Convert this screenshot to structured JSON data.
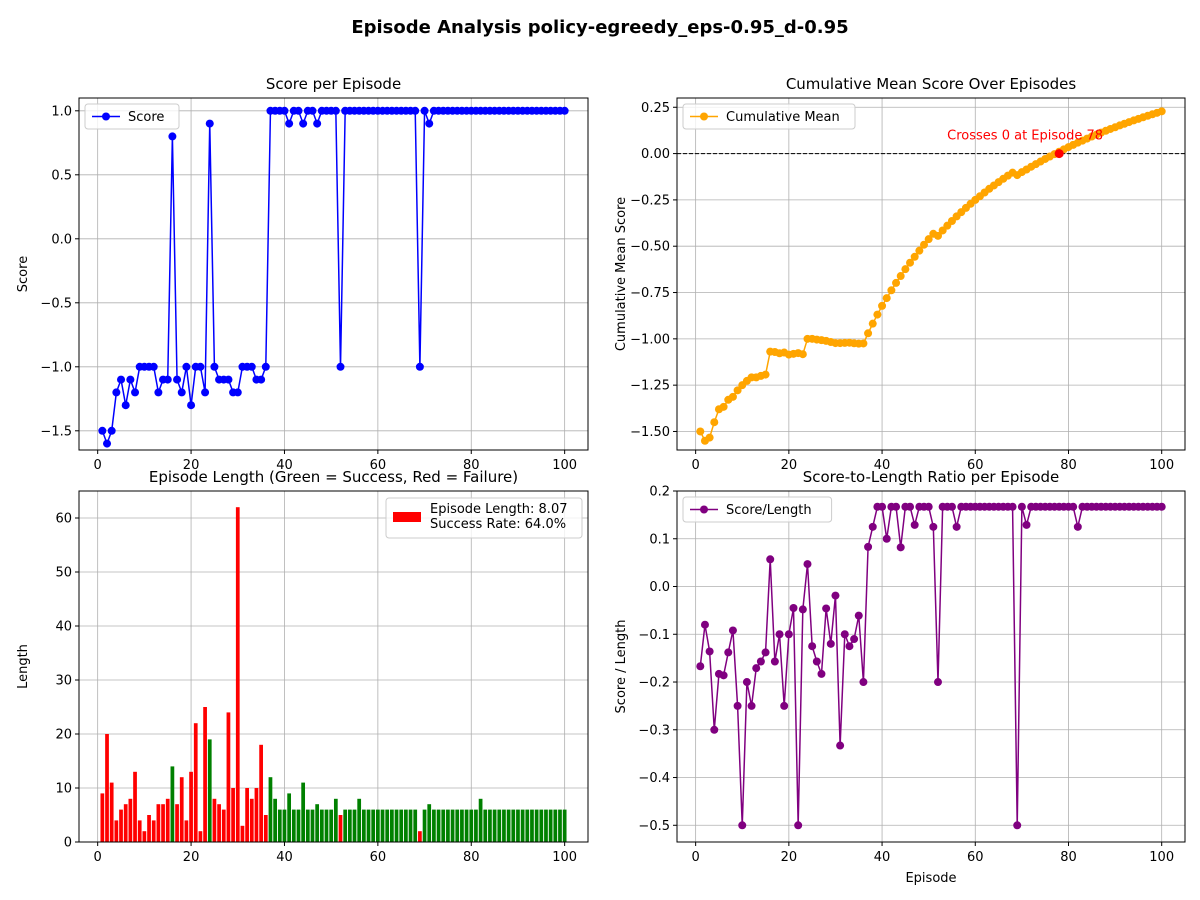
{
  "figure": {
    "title": "Episode Analysis policy-egreedy_eps-0.95_d-0.95"
  },
  "chart_data": [
    {
      "type": "line",
      "title": "Score per Episode",
      "xlabel": "",
      "ylabel": "Score",
      "xlim": [
        -4,
        105
      ],
      "ylim": [
        -1.65,
        1.1
      ],
      "xticks": [
        0,
        20,
        40,
        60,
        80,
        100
      ],
      "yticks": [
        -1.5,
        -1.0,
        -0.5,
        0.0,
        0.5,
        1.0
      ],
      "ytick_labels": [
        "−1.5",
        "−1.0",
        "−0.5",
        "0.0",
        "0.5",
        "1.0"
      ],
      "grid": true,
      "legend": "upper-left",
      "series": [
        {
          "name": "Score",
          "color": "#0000ff",
          "marker": "circle",
          "x": [
            1,
            2,
            3,
            4,
            5,
            6,
            7,
            8,
            9,
            10,
            11,
            12,
            13,
            14,
            15,
            16,
            17,
            18,
            19,
            20,
            21,
            22,
            23,
            24,
            25,
            26,
            27,
            28,
            29,
            30,
            31,
            32,
            33,
            34,
            35,
            36,
            37,
            38,
            39,
            40,
            41,
            42,
            43,
            44,
            45,
            46,
            47,
            48,
            49,
            50,
            51,
            52,
            53,
            54,
            55,
            56,
            57,
            58,
            59,
            60,
            61,
            62,
            63,
            64,
            65,
            66,
            67,
            68,
            69,
            70,
            71,
            72,
            73,
            74,
            75,
            76,
            77,
            78,
            79,
            80,
            81,
            82,
            83,
            84,
            85,
            86,
            87,
            88,
            89,
            90,
            91,
            92,
            93,
            94,
            95,
            96,
            97,
            98,
            99,
            100
          ],
          "values": [
            -1.5,
            -1.6,
            -1.5,
            -1.2,
            -1.1,
            -1.3,
            -1.1,
            -1.2,
            -1.0,
            -1.0,
            -1.0,
            -1.0,
            -1.2,
            -1.1,
            -1.1,
            0.8,
            -1.1,
            -1.2,
            -1.0,
            -1.3,
            -1.0,
            -1.0,
            -1.2,
            0.9,
            -1.0,
            -1.1,
            -1.1,
            -1.1,
            -1.2,
            -1.2,
            -1.0,
            -1.0,
            -1.0,
            -1.1,
            -1.1,
            -1.0,
            1.0,
            1.0,
            1.0,
            1.0,
            0.9,
            1.0,
            1.0,
            0.9,
            1.0,
            1.0,
            0.9,
            1.0,
            1.0,
            1.0,
            1.0,
            -1.0,
            1.0,
            1.0,
            1.0,
            1.0,
            1.0,
            1.0,
            1.0,
            1.0,
            1.0,
            1.0,
            1.0,
            1.0,
            1.0,
            1.0,
            1.0,
            1.0,
            -1.0,
            1.0,
            0.9,
            1.0,
            1.0,
            1.0,
            1.0,
            1.0,
            1.0,
            1.0,
            1.0,
            1.0,
            1.0,
            1.0,
            1.0,
            1.0,
            1.0,
            1.0,
            1.0,
            1.0,
            1.0,
            1.0,
            1.0,
            1.0,
            1.0,
            1.0,
            1.0,
            1.0,
            1.0,
            1.0,
            1.0,
            1.0
          ]
        }
      ]
    },
    {
      "type": "line",
      "title": "Cumulative Mean Score Over Episodes",
      "xlabel": "",
      "ylabel": "Cumulative Mean Score",
      "xlim": [
        -4,
        105
      ],
      "ylim": [
        -1.6,
        0.3
      ],
      "xticks": [
        0,
        20,
        40,
        60,
        80,
        100
      ],
      "yticks": [
        -1.5,
        -1.25,
        -1.0,
        -0.75,
        -0.5,
        -0.25,
        0.0,
        0.25
      ],
      "ytick_labels": [
        "−1.50",
        "−1.25",
        "−1.00",
        "−0.75",
        "−0.50",
        "−0.25",
        "0.00",
        "0.25"
      ],
      "grid": true,
      "legend": "upper-left",
      "reference_line": {
        "y": 0,
        "style": "dashed",
        "color": "#000000"
      },
      "annotation": {
        "text": "Crosses 0 at Episode 78",
        "x": 78,
        "y": 0.0,
        "color": "#ff0000"
      },
      "series": [
        {
          "name": "Cumulative Mean",
          "color": "#ffa500",
          "marker": "circle",
          "x": [
            1,
            2,
            3,
            4,
            5,
            6,
            7,
            8,
            9,
            10,
            11,
            12,
            13,
            14,
            15,
            16,
            17,
            18,
            19,
            20,
            21,
            22,
            23,
            24,
            25,
            26,
            27,
            28,
            29,
            30,
            31,
            32,
            33,
            34,
            35,
            36,
            37,
            38,
            39,
            40,
            41,
            42,
            43,
            44,
            45,
            46,
            47,
            48,
            49,
            50,
            51,
            52,
            53,
            54,
            55,
            56,
            57,
            58,
            59,
            60,
            61,
            62,
            63,
            64,
            65,
            66,
            67,
            68,
            69,
            70,
            71,
            72,
            73,
            74,
            75,
            76,
            77,
            78,
            79,
            80,
            81,
            82,
            83,
            84,
            85,
            86,
            87,
            88,
            89,
            90,
            91,
            92,
            93,
            94,
            95,
            96,
            97,
            98,
            99,
            100
          ],
          "values": [
            -1.5,
            -1.55,
            -1.533,
            -1.45,
            -1.38,
            -1.367,
            -1.329,
            -1.313,
            -1.278,
            -1.25,
            -1.227,
            -1.208,
            -1.208,
            -1.2,
            -1.193,
            -1.069,
            -1.071,
            -1.078,
            -1.074,
            -1.085,
            -1.081,
            -1.077,
            -1.083,
            -1.0,
            -1.0,
            -1.004,
            -1.007,
            -1.011,
            -1.017,
            -1.023,
            -1.023,
            -1.022,
            -1.021,
            -1.024,
            -1.026,
            -1.025,
            -0.97,
            -0.918,
            -0.869,
            -0.822,
            -0.78,
            -0.738,
            -0.698,
            -0.661,
            -0.624,
            -0.589,
            -0.557,
            -0.524,
            -0.492,
            -0.462,
            -0.433,
            -0.444,
            -0.415,
            -0.389,
            -0.364,
            -0.339,
            -0.316,
            -0.293,
            -0.271,
            -0.25,
            -0.23,
            -0.21,
            -0.19,
            -0.172,
            -0.154,
            -0.136,
            -0.119,
            -0.103,
            -0.116,
            -0.1,
            -0.086,
            -0.071,
            -0.057,
            -0.043,
            -0.029,
            -0.016,
            -0.003,
            0.01,
            0.023,
            0.035,
            0.047,
            0.059,
            0.07,
            0.081,
            0.092,
            0.102,
            0.113,
            0.123,
            0.133,
            0.142,
            0.152,
            0.161,
            0.17,
            0.179,
            0.187,
            0.196,
            0.204,
            0.212,
            0.22,
            0.228
          ]
        }
      ],
      "crossing_point": {
        "x": 78,
        "y": 0.0,
        "color": "#ff0000"
      }
    },
    {
      "type": "bar",
      "title": "Episode Length (Green = Success, Red = Failure)",
      "xlabel": "",
      "ylabel": "Length",
      "xlim": [
        -4,
        105
      ],
      "ylim": [
        0,
        65
      ],
      "xticks": [
        0,
        20,
        40,
        60,
        80,
        100
      ],
      "yticks": [
        0,
        10,
        20,
        30,
        40,
        50,
        60
      ],
      "grid": true,
      "legend": "upper-right",
      "legend_lines": [
        "Episode Length: 8.07",
        "Success Rate: 64.0%"
      ],
      "legend_color": "#ff0000",
      "success_color": "#008000",
      "failure_color": "#ff0000",
      "x": [
        1,
        2,
        3,
        4,
        5,
        6,
        7,
        8,
        9,
        10,
        11,
        12,
        13,
        14,
        15,
        16,
        17,
        18,
        19,
        20,
        21,
        22,
        23,
        24,
        25,
        26,
        27,
        28,
        29,
        30,
        31,
        32,
        33,
        34,
        35,
        36,
        37,
        38,
        39,
        40,
        41,
        42,
        43,
        44,
        45,
        46,
        47,
        48,
        49,
        50,
        51,
        52,
        53,
        54,
        55,
        56,
        57,
        58,
        59,
        60,
        61,
        62,
        63,
        64,
        65,
        66,
        67,
        68,
        69,
        70,
        71,
        72,
        73,
        74,
        75,
        76,
        77,
        78,
        79,
        80,
        81,
        82,
        83,
        84,
        85,
        86,
        87,
        88,
        89,
        90,
        91,
        92,
        93,
        94,
        95,
        96,
        97,
        98,
        99,
        100
      ],
      "values": [
        9,
        20,
        11,
        4,
        6,
        7,
        8,
        13,
        4,
        2,
        5,
        4,
        7,
        7,
        8,
        14,
        7,
        12,
        4,
        13,
        22,
        2,
        25,
        19,
        8,
        7,
        6,
        24,
        10,
        62,
        3,
        10,
        8,
        10,
        18,
        5,
        12,
        8,
        6,
        6,
        9,
        6,
        6,
        11,
        6,
        6,
        7,
        6,
        6,
        6,
        8,
        5,
        6,
        6,
        6,
        8,
        6,
        6,
        6,
        6,
        6,
        6,
        6,
        6,
        6,
        6,
        6,
        6,
        2,
        6,
        7,
        6,
        6,
        6,
        6,
        6,
        6,
        6,
        6,
        6,
        6,
        8,
        6,
        6,
        6,
        6,
        6,
        6,
        6,
        6,
        6,
        6,
        6,
        6,
        6,
        6,
        6,
        6,
        6,
        6
      ],
      "success": [
        0,
        0,
        0,
        0,
        0,
        0,
        0,
        0,
        0,
        0,
        0,
        0,
        0,
        0,
        0,
        1,
        0,
        0,
        0,
        0,
        0,
        0,
        0,
        1,
        0,
        0,
        0,
        0,
        0,
        0,
        0,
        0,
        0,
        0,
        0,
        0,
        1,
        1,
        1,
        1,
        1,
        1,
        1,
        1,
        1,
        1,
        1,
        1,
        1,
        1,
        1,
        0,
        1,
        1,
        1,
        1,
        1,
        1,
        1,
        1,
        1,
        1,
        1,
        1,
        1,
        1,
        1,
        1,
        0,
        1,
        1,
        1,
        1,
        1,
        1,
        1,
        1,
        1,
        1,
        1,
        1,
        1,
        1,
        1,
        1,
        1,
        1,
        1,
        1,
        1,
        1,
        1,
        1,
        1,
        1,
        1,
        1,
        1,
        1,
        1
      ]
    },
    {
      "type": "line",
      "title": "Score-to-Length Ratio per Episode",
      "xlabel": "Episode",
      "ylabel": "Score / Length",
      "xlim": [
        -4,
        105
      ],
      "ylim": [
        -0.535,
        0.2
      ],
      "xticks": [
        0,
        20,
        40,
        60,
        80,
        100
      ],
      "yticks": [
        -0.5,
        -0.4,
        -0.3,
        -0.2,
        -0.1,
        0.0,
        0.1,
        0.2
      ],
      "ytick_labels": [
        "−0.5",
        "−0.4",
        "−0.3",
        "−0.2",
        "−0.1",
        "0.0",
        "0.1",
        "0.2"
      ],
      "grid": true,
      "legend": "upper-left",
      "series": [
        {
          "name": "Score/Length",
          "color": "#800080",
          "marker": "circle",
          "x": [
            1,
            2,
            3,
            4,
            5,
            6,
            7,
            8,
            9,
            10,
            11,
            12,
            13,
            14,
            15,
            16,
            17,
            18,
            19,
            20,
            21,
            22,
            23,
            24,
            25,
            26,
            27,
            28,
            29,
            30,
            31,
            32,
            33,
            34,
            35,
            36,
            37,
            38,
            39,
            40,
            41,
            42,
            43,
            44,
            45,
            46,
            47,
            48,
            49,
            50,
            51,
            52,
            53,
            54,
            55,
            56,
            57,
            58,
            59,
            60,
            61,
            62,
            63,
            64,
            65,
            66,
            67,
            68,
            69,
            70,
            71,
            72,
            73,
            74,
            75,
            76,
            77,
            78,
            79,
            80,
            81,
            82,
            83,
            84,
            85,
            86,
            87,
            88,
            89,
            90,
            91,
            92,
            93,
            94,
            95,
            96,
            97,
            98,
            99,
            100
          ],
          "values": [
            -0.167,
            -0.08,
            -0.136,
            -0.3,
            -0.183,
            -0.186,
            -0.138,
            -0.092,
            -0.25,
            -0.5,
            -0.2,
            -0.25,
            -0.171,
            -0.157,
            -0.138,
            0.057,
            -0.157,
            -0.1,
            -0.25,
            -0.1,
            -0.045,
            -0.5,
            -0.048,
            0.047,
            -0.125,
            -0.157,
            -0.183,
            -0.046,
            -0.12,
            -0.019,
            -0.333,
            -0.1,
            -0.125,
            -0.11,
            -0.061,
            -0.2,
            0.083,
            0.125,
            0.167,
            0.167,
            0.1,
            0.167,
            0.167,
            0.082,
            0.167,
            0.167,
            0.129,
            0.167,
            0.167,
            0.167,
            0.125,
            -0.2,
            0.167,
            0.167,
            0.167,
            0.125,
            0.167,
            0.167,
            0.167,
            0.167,
            0.167,
            0.167,
            0.167,
            0.167,
            0.167,
            0.167,
            0.167,
            0.167,
            -0.5,
            0.167,
            0.129,
            0.167,
            0.167,
            0.167,
            0.167,
            0.167,
            0.167,
            0.167,
            0.167,
            0.167,
            0.167,
            0.125,
            0.167,
            0.167,
            0.167,
            0.167,
            0.167,
            0.167,
            0.167,
            0.167,
            0.167,
            0.167,
            0.167,
            0.167,
            0.167,
            0.167,
            0.167,
            0.167,
            0.167,
            0.167
          ]
        }
      ]
    }
  ]
}
